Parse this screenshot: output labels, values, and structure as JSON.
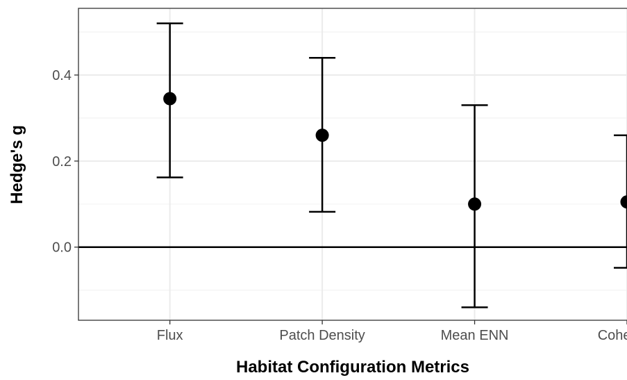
{
  "chart_data": {
    "type": "errorbar",
    "categories": [
      "Flux",
      "Patch Density",
      "Mean ENN",
      "Cohesion"
    ],
    "points": [
      {
        "category": "Flux",
        "value": 0.345,
        "lower": 0.162,
        "upper": 0.52
      },
      {
        "category": "Patch Density",
        "value": 0.26,
        "lower": 0.082,
        "upper": 0.44
      },
      {
        "category": "Mean ENN",
        "value": 0.1,
        "lower": -0.14,
        "upper": 0.33
      },
      {
        "category": "Cohesion",
        "value": 0.105,
        "lower": -0.048,
        "upper": 0.26
      }
    ],
    "xlabel": "Habitat Configuration Metrics",
    "ylabel": "Hedge's g",
    "ylim": [
      -0.17,
      0.555
    ],
    "yticks": [
      0.0,
      0.2,
      0.4
    ],
    "ytick_labels": [
      "0.0",
      "0.2",
      "0.4"
    ],
    "reference_line": 0.0,
    "grid": true,
    "theme": "bw",
    "colors": {
      "points": "#000000",
      "errorbars": "#000000",
      "grid_major": "#ebebeb",
      "grid_minor": "#f4f4f4",
      "panel_border": "#333333",
      "reference_line": "#000000"
    }
  }
}
